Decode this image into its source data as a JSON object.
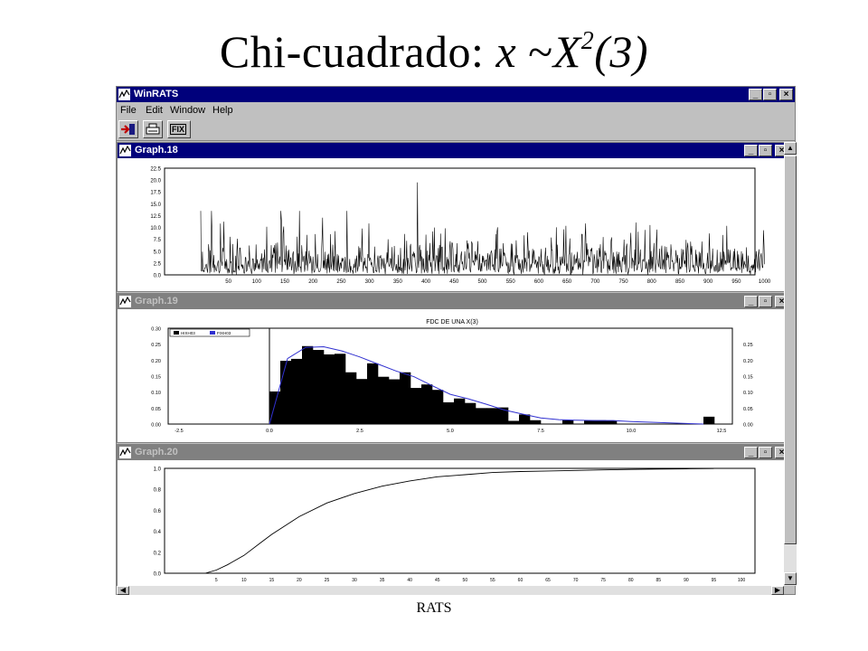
{
  "slide": {
    "title_prefix": "Chi-cuadrado:",
    "title_x": "x",
    "title_tilde": "~",
    "title_chi": "X",
    "title_exp": "2",
    "title_df": "(3)",
    "footer": "RATS"
  },
  "app": {
    "title": "WinRATS",
    "menu": [
      "File",
      "Edit",
      "Window",
      "Help"
    ],
    "toolbar": {
      "fix_label": "FIX"
    },
    "window_buttons": {
      "minimize": "_",
      "maximize": "▫",
      "close": "×"
    }
  },
  "graphs": [
    {
      "title": "Graph.18"
    },
    {
      "title": "Graph.19"
    },
    {
      "title": "Graph.20"
    }
  ],
  "chart_data": [
    {
      "type": "line",
      "ylim": [
        0,
        22.5
      ],
      "yticks": [
        "0.0",
        "2.5",
        "5.0",
        "7.5",
        "10.0",
        "12.5",
        "15.0",
        "17.5",
        "20.0",
        "22.5"
      ],
      "xlim": [
        1,
        1000
      ],
      "xticks": [
        "50",
        "100",
        "150",
        "200",
        "250",
        "300",
        "350",
        "400",
        "450",
        "500",
        "550",
        "600",
        "650",
        "700",
        "750",
        "800",
        "850",
        "900",
        "950",
        "1000"
      ],
      "n_points": 1000,
      "note_series": "simulated chi-square(3) draws; values roughly 0-12 with spikes up to ~19.5 near x≈380"
    },
    {
      "type": "bar",
      "title": "FDC DE UNA X(3)",
      "legend": [
        "HIXH03",
        "FIXH03"
      ],
      "xlim": [
        -2.5,
        12.5
      ],
      "xticks": [
        "-2.5",
        "0.0",
        "2.5",
        "5.0",
        "7.5",
        "10.0",
        "12.5"
      ],
      "ylim": [
        0,
        0.3
      ],
      "yticks_left": [
        "0.00",
        "0.05",
        "0.10",
        "0.15",
        "0.20",
        "0.25",
        "0.30"
      ],
      "yticks_right": [
        "0.00",
        "0.05",
        "0.10",
        "0.15",
        "0.20",
        "0.25"
      ],
      "bin_width": 0.3,
      "bins_start": [
        0.0,
        0.3,
        0.6,
        0.9,
        1.2,
        1.5,
        1.8,
        2.1,
        2.4,
        2.7,
        3.0,
        3.3,
        3.6,
        3.9,
        4.2,
        4.5,
        4.8,
        5.1,
        5.4,
        5.7,
        6.0,
        6.3,
        6.6,
        6.9,
        7.2,
        7.5,
        7.8,
        8.1,
        8.4,
        8.7,
        9.0,
        9.3,
        9.6,
        9.9,
        10.2,
        10.5,
        10.8,
        11.1,
        11.4,
        11.7,
        12.0
      ],
      "values": [
        0.102,
        0.198,
        0.204,
        0.244,
        0.232,
        0.218,
        0.22,
        0.162,
        0.141,
        0.19,
        0.148,
        0.14,
        0.162,
        0.113,
        0.124,
        0.107,
        0.068,
        0.08,
        0.066,
        0.05,
        0.05,
        0.052,
        0.01,
        0.03,
        0.012,
        0.0,
        0.0,
        0.012,
        0.0,
        0.012,
        0.012,
        0.011,
        0.0,
        0.0,
        0.0,
        0.0,
        0.0,
        0.0,
        0.0,
        0.0,
        0.023
      ],
      "series": [
        {
          "name": "FIXH03",
          "x": [
            0,
            0.5,
            1.0,
            1.5,
            2.0,
            2.5,
            3.0,
            3.5,
            4.0,
            4.5,
            5.0,
            5.5,
            6.0,
            6.5,
            7.0,
            7.5,
            8.0,
            8.5,
            9.0,
            9.5,
            10.0,
            11.0,
            12.0
          ],
          "y": [
            0.0,
            0.205,
            0.24,
            0.242,
            0.229,
            0.21,
            0.188,
            0.166,
            0.148,
            0.12,
            0.093,
            0.079,
            0.062,
            0.044,
            0.031,
            0.019,
            0.014,
            0.012,
            0.011,
            0.011,
            0.008,
            0.004,
            0.0
          ]
        }
      ],
      "vline_x": 0.0
    },
    {
      "type": "line",
      "ylim": [
        0.0,
        1.0
      ],
      "yticks": [
        "0.0",
        "0.2",
        "0.4",
        "0.6",
        "0.8",
        "1.0"
      ],
      "xticks": [
        "5",
        "10",
        "15",
        "20",
        "25",
        "30",
        "35",
        "40",
        "45",
        "50",
        "55",
        "60",
        "65",
        "70",
        "75",
        "80",
        "85",
        "90",
        "95",
        "100"
      ],
      "series": [
        {
          "name": "",
          "x": [
            3,
            5,
            7,
            10,
            13,
            15,
            20,
            25,
            30,
            35,
            40,
            45,
            50,
            55,
            60,
            65,
            70,
            75,
            80,
            85,
            90,
            95
          ],
          "y": [
            0.0,
            0.03,
            0.08,
            0.17,
            0.29,
            0.37,
            0.54,
            0.67,
            0.76,
            0.83,
            0.88,
            0.92,
            0.94,
            0.96,
            0.97,
            0.975,
            0.98,
            0.985,
            0.99,
            0.993,
            0.996,
            0.998
          ]
        }
      ]
    }
  ]
}
